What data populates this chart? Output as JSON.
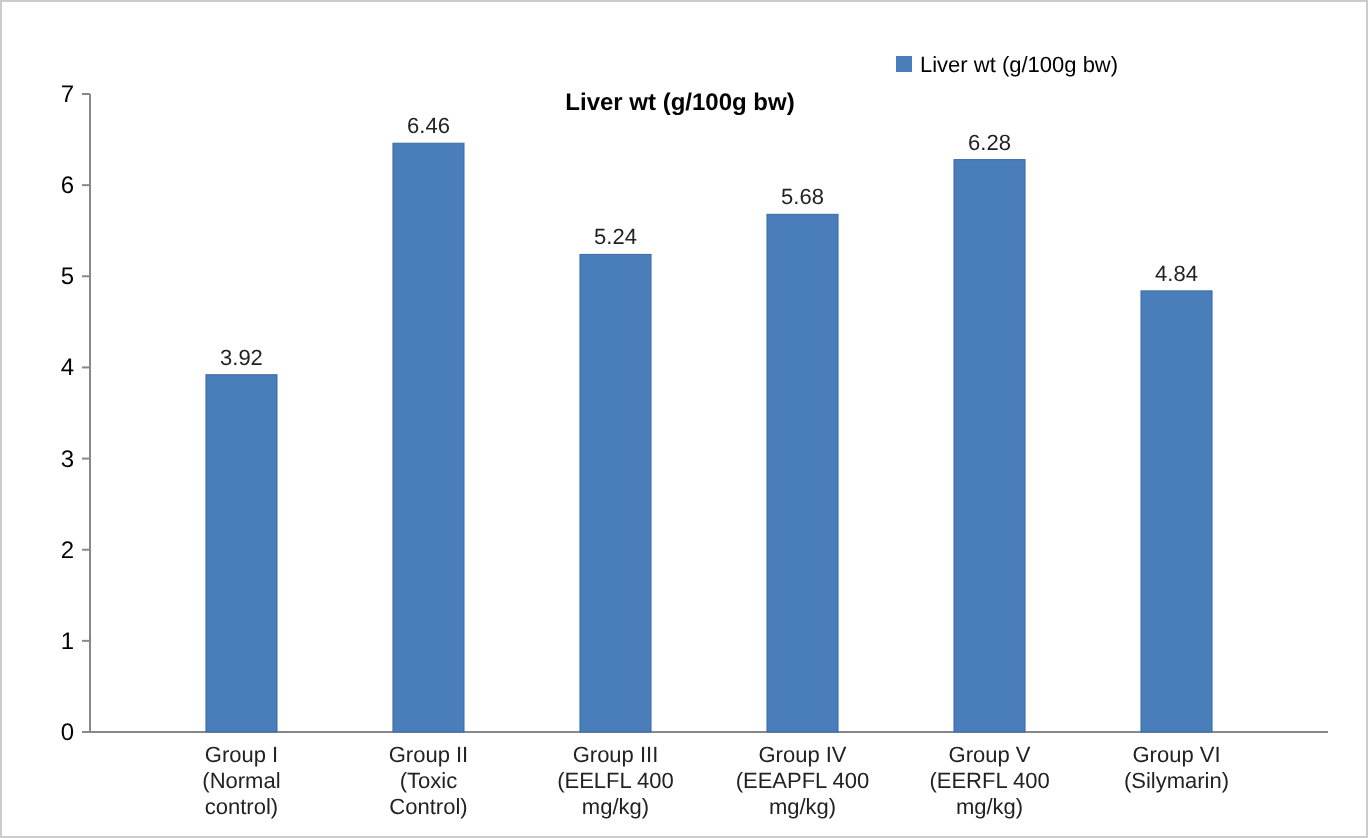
{
  "chart_data": {
    "type": "bar",
    "title": "Liver wt (g/100g bw)",
    "categories": [
      "Group I (Normal control)",
      "Group II (Toxic Control)",
      "Group III (EELFL 400 mg/kg)",
      "Group IV (EEAPFL 400 mg/kg)",
      "Group V (EERFL 400 mg/kg)",
      "Group VI (Silymarin)"
    ],
    "series": [
      {
        "name": "Liver wt (g/100g bw)",
        "color": "#4a7ebb",
        "values": [
          3.92,
          6.46,
          5.24,
          5.68,
          6.28,
          4.84
        ]
      }
    ],
    "ylim": [
      0,
      7
    ],
    "yticks": [
      0,
      1,
      2,
      3,
      4,
      5,
      6,
      7
    ],
    "data_labels": true,
    "legend": "top right",
    "grid": false
  }
}
